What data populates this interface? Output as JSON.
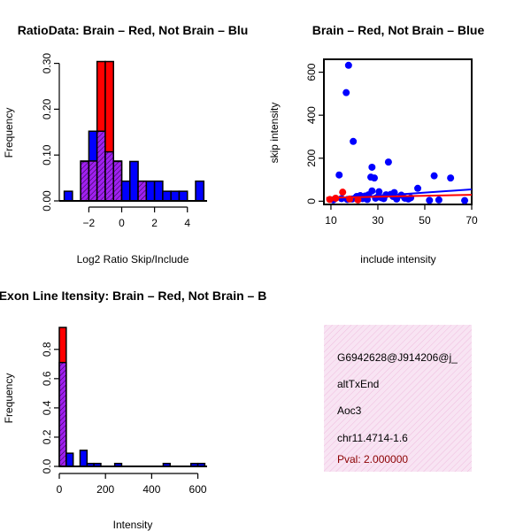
{
  "colors": {
    "red": "#ff0000",
    "blue": "#0000ff",
    "purple": "#a020f0",
    "pink_panel": "#f7e0f2"
  },
  "chart_data": [
    {
      "id": "ratio_hist",
      "type": "bar",
      "title": "RatioData: Brain – Red, Not Brain – Blu",
      "xlabel": "Log2 Ratio Skip/Include",
      "ylabel": "Frequency",
      "xlim": [
        -3.8,
        5.2
      ],
      "ylim": [
        0,
        0.305
      ],
      "xticks": [
        -2,
        0,
        2,
        4
      ],
      "xtick_labels": [
        "−2",
        "0",
        "2",
        "4"
      ],
      "yticks": [
        0.0,
        0.1,
        0.2,
        0.3
      ],
      "ytick_labels": [
        "0.00",
        "0.10",
        "0.20",
        "0.30"
      ],
      "bin_width": 0.5,
      "series": [
        {
          "name": "Not Brain",
          "color": "blue",
          "bins": [
            [
              -3.5,
              0.021
            ],
            [
              -2.5,
              0.086
            ],
            [
              -2.0,
              0.152
            ],
            [
              -1.5,
              0.152
            ],
            [
              -1.0,
              0.107
            ],
            [
              -0.5,
              0.086
            ],
            [
              0.0,
              0.043
            ],
            [
              0.5,
              0.086
            ],
            [
              1.0,
              0.043
            ],
            [
              1.5,
              0.043
            ],
            [
              2.0,
              0.043
            ],
            [
              2.5,
              0.021
            ],
            [
              3.0,
              0.021
            ],
            [
              3.5,
              0.021
            ],
            [
              4.5,
              0.043
            ]
          ]
        },
        {
          "name": "Brain",
          "color": "red",
          "bins": [
            [
              -2.5,
              0.087
            ],
            [
              -2.0,
              0.087
            ],
            [
              -1.5,
              0.304
            ],
            [
              -1.0,
              0.304
            ],
            [
              -0.5,
              0.087
            ],
            [
              1.0,
              0.043
            ]
          ]
        }
      ]
    },
    {
      "id": "skip_scatter",
      "type": "scatter",
      "title": "Brain – Red, Not Brain – Blue",
      "xlabel": "include intensity",
      "ylabel": "skip intensity",
      "xlim": [
        7,
        70
      ],
      "ylim": [
        -15,
        660
      ],
      "xticks": [
        10,
        30,
        50,
        70
      ],
      "xtick_labels": [
        "10",
        "30",
        "50",
        "70"
      ],
      "yticks": [
        0,
        200,
        400,
        600
      ],
      "ytick_labels": [
        "0",
        "200",
        "400",
        "600"
      ],
      "series": [
        {
          "name": "Not Brain",
          "color": "blue",
          "points": [
            [
              17.5,
              632
            ],
            [
              16.5,
              505
            ],
            [
              19.5,
              278
            ],
            [
              13.5,
              122
            ],
            [
              34.5,
              182
            ],
            [
              27.5,
              158
            ],
            [
              27,
              112
            ],
            [
              28.5,
              108
            ],
            [
              54,
              118
            ],
            [
              61,
              108
            ],
            [
              47,
              60
            ],
            [
              37,
              40
            ],
            [
              40,
              28
            ],
            [
              33.5,
              30
            ],
            [
              35.5,
              32
            ],
            [
              26,
              30
            ],
            [
              22.5,
              26
            ],
            [
              21,
              22
            ],
            [
              24.5,
              24
            ],
            [
              30,
              20
            ],
            [
              31.5,
              16
            ],
            [
              29,
              14
            ],
            [
              32.5,
              12
            ],
            [
              38,
              10
            ],
            [
              41.5,
              14
            ],
            [
              44,
              16
            ],
            [
              17,
              8
            ],
            [
              19,
              10
            ],
            [
              23.5,
              12
            ],
            [
              25.5,
              8
            ],
            [
              11,
              6
            ],
            [
              52,
              4
            ],
            [
              56,
              6
            ],
            [
              67,
              3
            ],
            [
              27.5,
              48
            ],
            [
              30.5,
              44
            ],
            [
              36.5,
              22
            ],
            [
              43,
              10
            ],
            [
              20.5,
              16
            ],
            [
              14.5,
              12
            ]
          ],
          "fit_line": [
            [
              8,
              8
            ],
            [
              70,
              55
            ]
          ]
        },
        {
          "name": "Brain",
          "color": "red",
          "points": [
            [
              15,
              42
            ],
            [
              9.5,
              8
            ],
            [
              12,
              14
            ],
            [
              18,
              10
            ],
            [
              21.5,
              6
            ]
          ],
          "fit_line": [
            [
              8,
              16
            ],
            [
              70,
              30
            ]
          ]
        }
      ]
    },
    {
      "id": "intensity_hist",
      "type": "bar",
      "title": "Exon Line Itensity: Brain – Red, Not Brain – B",
      "xlabel": "Intensity",
      "ylabel": "Frequency",
      "xlim": [
        0,
        640
      ],
      "ylim": [
        0,
        0.95
      ],
      "xticks": [
        0,
        200,
        400,
        600
      ],
      "xtick_labels": [
        "0",
        "200",
        "400",
        "600"
      ],
      "yticks": [
        0.0,
        0.2,
        0.4,
        0.6,
        0.8
      ],
      "ytick_labels": [
        "0.0",
        "0.2",
        "0.4",
        "0.6",
        "0.8"
      ],
      "bin_width": 30,
      "series": [
        {
          "name": "Not Brain",
          "color": "blue",
          "bins": [
            [
              0,
              0.71
            ],
            [
              30,
              0.09
            ],
            [
              90,
              0.11
            ],
            [
              120,
              0.02
            ],
            [
              150,
              0.02
            ],
            [
              240,
              0.02
            ],
            [
              450,
              0.02
            ],
            [
              570,
              0.02
            ],
            [
              600,
              0.02
            ]
          ]
        },
        {
          "name": "Brain",
          "color": "red",
          "bins": [
            [
              0,
              0.95
            ]
          ]
        }
      ]
    }
  ],
  "info_panel": {
    "lines": [
      "G6942628@J914206@j_",
      "altTxEnd",
      "Aoc3",
      "chr11.4714-1.6"
    ],
    "pval": "Pval: 2.000000"
  }
}
